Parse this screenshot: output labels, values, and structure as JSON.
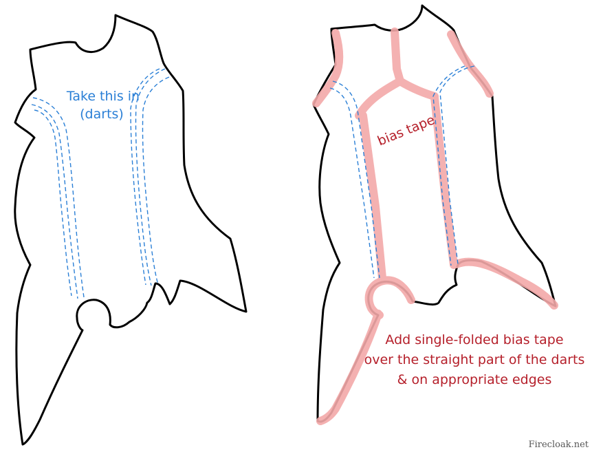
{
  "left_panel": {
    "label_line1": "Take this in",
    "label_line2": "(darts)"
  },
  "right_panel": {
    "tape_label": "bias tape",
    "note_line1": "Add single-folded bias tape",
    "note_line2": "over the straight part of the darts",
    "note_line3": "& on appropriate edges"
  },
  "credit": "Firecloak.net",
  "colors": {
    "outline": "#000000",
    "dart": "#2a7fd6",
    "tape_fill": "#f3a9a9",
    "tape_edge": "#e37f85",
    "note_text": "#b51f2a"
  }
}
